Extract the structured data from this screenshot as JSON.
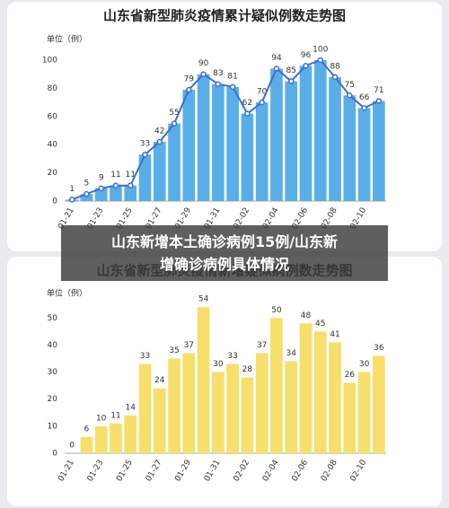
{
  "chart_data": [
    {
      "type": "bar",
      "title": "山东省新型肺炎疫情累计疑似例数走势图",
      "y_label": "单位（例）",
      "categories": [
        "01-21",
        null,
        "01-23",
        null,
        "01-25",
        null,
        "01-27",
        null,
        "01-29",
        null,
        "01-31",
        null,
        "02-02",
        null,
        "02-04",
        null,
        "02-06",
        null,
        "02-08",
        null,
        "02-10",
        null
      ],
      "values": [
        1,
        5,
        9,
        11,
        11,
        33,
        42,
        55,
        79,
        90,
        83,
        81,
        62,
        70,
        94,
        85,
        96,
        100,
        88,
        75,
        66,
        71
      ],
      "color": "#5aaee8",
      "line_overlay": true,
      "line_color": "#3a6fd0",
      "ylim": [
        0,
        100
      ],
      "yticks": [
        0,
        20,
        40,
        60,
        80,
        100
      ],
      "grid": false
    },
    {
      "type": "bar",
      "title": "山东省新型肺炎疫情新增疑似病例数走势图",
      "y_label": "单位（例）",
      "categories": [
        "01-21",
        null,
        "01-23",
        null,
        "01-25",
        null,
        "01-27",
        null,
        "01-29",
        null,
        "01-31",
        null,
        "02-02",
        null,
        "02-04",
        null,
        "02-06",
        null,
        "02-08",
        null,
        "02-10",
        null
      ],
      "values": [
        0,
        6,
        10,
        11,
        14,
        33,
        24,
        35,
        37,
        54,
        30,
        33,
        28,
        37,
        50,
        34,
        48,
        45,
        41,
        26,
        30,
        36
      ],
      "color": "#f7df6b",
      "line_overlay": false,
      "ylim": [
        0,
        55
      ],
      "yticks": [
        0,
        10,
        20,
        30,
        40,
        50
      ],
      "grid": false
    }
  ],
  "banner": [
    "山东新增本土确诊病例15例/山东新",
    "增确诊病例具体情况"
  ]
}
